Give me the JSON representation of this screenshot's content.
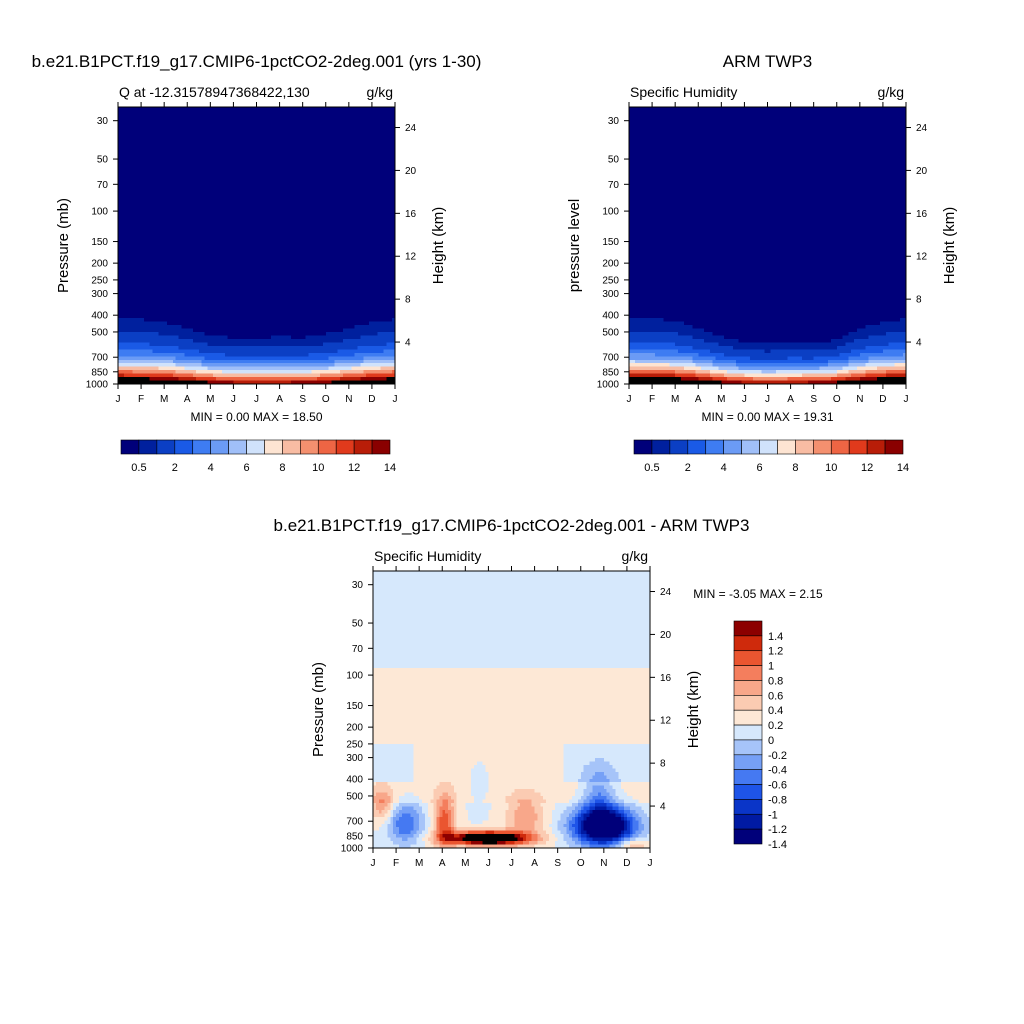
{
  "chart_data": [
    {
      "type": "heatmap",
      "title": "b.e21.B1PCT.f19_g17.CMIP6-1pctCO2-2deg.001 (yrs 1-30)",
      "left_subtitle": "Q at -12.31578947368422,130",
      "right_subtitle": "g/kg",
      "ylabel": "Pressure (mb)",
      "ylabel_right": "Height (km)",
      "x_ticks": [
        "J",
        "F",
        "M",
        "A",
        "M",
        "J",
        "J",
        "A",
        "S",
        "O",
        "N",
        "D",
        "J"
      ],
      "pressure_ticks": [
        "30",
        "50",
        "70",
        "100",
        "150",
        "200",
        "250",
        "300",
        "400",
        "500",
        "700",
        "850",
        "1000"
      ],
      "height_ticks": [
        "24",
        "20",
        "16",
        "12",
        "8",
        "4"
      ],
      "stats": "MIN =   0.00 MAX =  18.50",
      "colorbar_labels": [
        "0.5",
        "2",
        "4",
        "6",
        "8",
        "10",
        "12",
        "14"
      ],
      "months": [
        1,
        2,
        3,
        4,
        5,
        6,
        7,
        8,
        9,
        10,
        11,
        12,
        13
      ],
      "surface_q": [
        18.5,
        18.3,
        17.8,
        16.6,
        15.2,
        14.4,
        14.0,
        14.2,
        14.6,
        15.2,
        16.4,
        17.6,
        18.5
      ],
      "moist_top_pressure": [
        300,
        300,
        320,
        360,
        410,
        430,
        430,
        420,
        430,
        400,
        360,
        320,
        300
      ]
    },
    {
      "type": "heatmap",
      "title": "ARM TWP3",
      "left_subtitle": "Specific Humidity",
      "right_subtitle": "g/kg",
      "ylabel": "pressure level",
      "ylabel_right": "Height (km)",
      "x_ticks": [
        "J",
        "F",
        "M",
        "A",
        "M",
        "J",
        "J",
        "A",
        "S",
        "O",
        "N",
        "D",
        "J"
      ],
      "pressure_ticks": [
        "30",
        "50",
        "70",
        "100",
        "150",
        "200",
        "250",
        "300",
        "400",
        "500",
        "700",
        "850",
        "1000"
      ],
      "height_ticks": [
        "24",
        "20",
        "16",
        "12",
        "8",
        "4"
      ],
      "stats": "MIN =   0.00 MAX =  19.31",
      "colorbar_labels": [
        "0.5",
        "2",
        "4",
        "6",
        "8",
        "10",
        "12",
        "14"
      ],
      "months": [
        1,
        2,
        3,
        4,
        5,
        6,
        7,
        8,
        9,
        10,
        11,
        12,
        13
      ],
      "surface_q": [
        19.3,
        19.1,
        18.7,
        17.3,
        15.5,
        14.3,
        13.8,
        14.1,
        14.7,
        15.6,
        17.2,
        18.6,
        19.3
      ],
      "moist_top_pressure": [
        300,
        300,
        310,
        360,
        420,
        470,
        480,
        470,
        480,
        450,
        360,
        320,
        300
      ]
    },
    {
      "type": "heatmap",
      "title": "b.e21.B1PCT.f19_g17.CMIP6-1pctCO2-2deg.001 - ARM TWP3",
      "left_subtitle": "Specific Humidity",
      "right_subtitle": "g/kg",
      "ylabel": "Pressure (mb)",
      "ylabel_right": "Height (km)",
      "x_ticks": [
        "J",
        "F",
        "M",
        "A",
        "M",
        "J",
        "J",
        "A",
        "S",
        "O",
        "N",
        "D",
        "J"
      ],
      "pressure_ticks": [
        "30",
        "50",
        "70",
        "100",
        "150",
        "200",
        "250",
        "300",
        "400",
        "500",
        "700",
        "850",
        "1000"
      ],
      "height_ticks": [
        "24",
        "20",
        "16",
        "12",
        "8",
        "4"
      ],
      "stats": "MIN =  -3.05 MAX =   2.15",
      "colorbar_labels": [
        "1.4",
        "1.2",
        "1",
        "0.8",
        "0.6",
        "0.4",
        "0.2",
        "0",
        "-0.2",
        "-0.4",
        "-0.6",
        "-0.8",
        "-1",
        "-1.2",
        "-1.4"
      ]
    }
  ],
  "colors": {
    "seq_palette": [
      "#00007a",
      "#00209e",
      "#0b3fc4",
      "#1a5ae6",
      "#3e7cf2",
      "#6b9bf5",
      "#a0bff8",
      "#d0e2fb",
      "#fde4d2",
      "#f8bca3",
      "#f4906f",
      "#ee6544",
      "#e03a1c",
      "#b81d08",
      "#8a0000"
    ],
    "div_palette": [
      "#00007a",
      "#001aa3",
      "#0a35c8",
      "#1e54e8",
      "#4579f2",
      "#76a0f6",
      "#a6c4f9",
      "#d6e8fc",
      "#fde8d6",
      "#fbcbb2",
      "#f8a78a",
      "#f47e5d",
      "#ea5530",
      "#cf2a0c",
      "#8c0000"
    ],
    "background": "#ffffff"
  }
}
